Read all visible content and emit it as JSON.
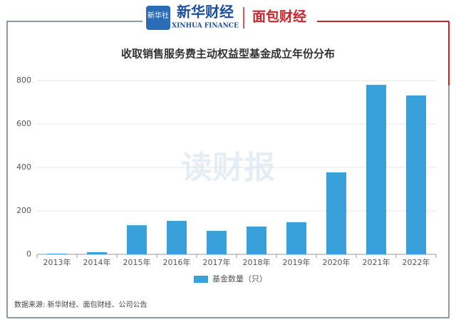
{
  "header": {
    "badge": "新华社",
    "brand": "新华财经",
    "brand_en": "XINHUA FINANCE",
    "partner": "面包财经"
  },
  "watermark": "读财报",
  "chart_data": {
    "type": "bar",
    "title": "收取销售服务费主动权益型基金成立年份分布",
    "categories": [
      "2013年",
      "2014年",
      "2015年",
      "2016年",
      "2017年",
      "2018年",
      "2019年",
      "2020年",
      "2021年",
      "2022年"
    ],
    "series": [
      {
        "name": "基金数量（只）",
        "color": "#3aa0da",
        "values": [
          3,
          10,
          134,
          154,
          108,
          128,
          148,
          377,
          780,
          731
        ]
      }
    ],
    "ylim": [
      0,
      800
    ],
    "yticks": [
      0,
      200,
      400,
      600,
      800
    ],
    "grid": true,
    "legend": "bottom"
  },
  "source": "数据来源: 新华财经、面包财经、公司公告"
}
